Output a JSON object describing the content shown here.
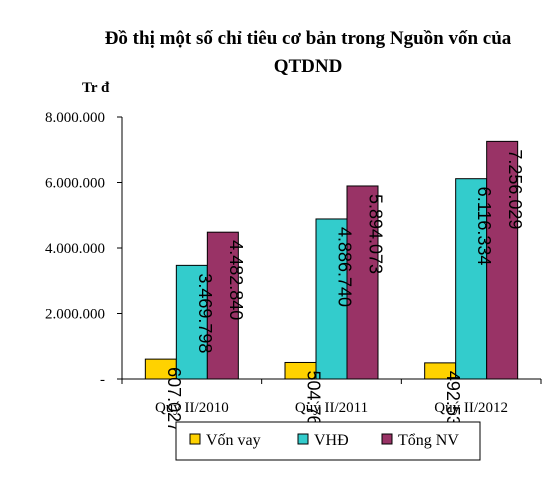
{
  "chart_data": {
    "type": "bar",
    "title_line1": "Đồ thị một số chỉ tiêu cơ bản trong Nguồn vốn của",
    "title_line2": "QTDND",
    "unit_label": "Tr đ",
    "categories": [
      "Quý II/2010",
      "Quý II/2011",
      "Quý II/2012"
    ],
    "series": [
      {
        "name": "Vốn vay",
        "color": "#ffd200",
        "values": [
          607027,
          504766,
          492531
        ],
        "labels": [
          "607.027",
          "504.766",
          "492.531"
        ]
      },
      {
        "name": "VHĐ",
        "color": "#33cccc",
        "values": [
          3469798,
          4886740,
          6116334
        ],
        "labels": [
          "3.469.798",
          "4.886.740",
          "6.116.334"
        ]
      },
      {
        "name": "Tổng NV",
        "color": "#993366",
        "values": [
          4482840,
          5894073,
          7256029
        ],
        "labels": [
          "4.482.840",
          "5.894.073",
          "7.256.029"
        ]
      }
    ],
    "ylim": [
      0,
      8000000
    ],
    "yticks": [
      0,
      2000000,
      4000000,
      6000000,
      8000000
    ],
    "ytick_labels": [
      "-",
      "2.000.000",
      "4.000.000",
      "6.000.000",
      "8.000.000"
    ],
    "grid": false,
    "legend_position": "bottom"
  }
}
